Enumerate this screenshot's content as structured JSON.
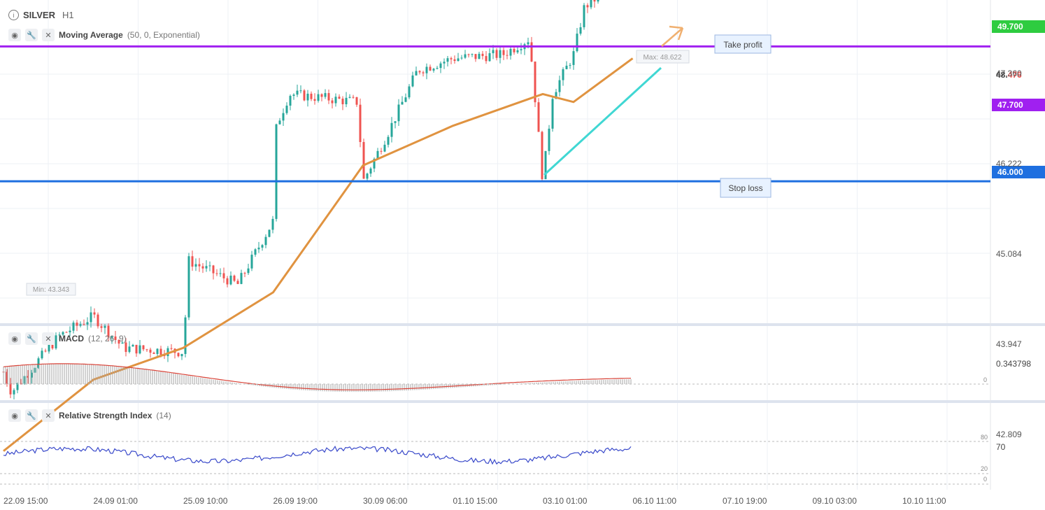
{
  "header": {
    "symbol": "SILVER",
    "timeframe": "H1"
  },
  "indicators": {
    "ma": {
      "name": "Moving Average",
      "params": "(50, 0, Exponential)"
    },
    "macd": {
      "name": "MACD",
      "params": "(12, 26, 9)"
    },
    "rsi": {
      "name": "Relative Strength Index",
      "params": "(14)"
    }
  },
  "price_axis": {
    "ticks": [
      "47.360",
      "46.222",
      "45.084",
      "43.947",
      "42.809"
    ],
    "current_price_prefix": "48.",
    "current_price_suffix": "476",
    "tp_tag": "49.700",
    "level_tag": "47.700",
    "sl_tag": "46.000"
  },
  "macd_axis": {
    "value": "0.343798",
    "zero": "0"
  },
  "rsi_axis": {
    "value": "70",
    "upper": "80",
    "lower": "20",
    "zero": "0"
  },
  "annotations": {
    "take_profit": "Take profit",
    "stop_loss": "Stop loss",
    "max_label": "Max: 48.622",
    "min_label": "Min: 43.343"
  },
  "x_labels": [
    "22.09 15:00",
    "24.09 01:00",
    "25.09 10:00",
    "26.09 19:00",
    "30.09 06:00",
    "01.10 15:00",
    "03.10 01:00",
    "06.10 11:00",
    "07.10 19:00",
    "09.10 03:00",
    "10.10 11:00"
  ],
  "colors": {
    "up_candle": "#26a69a",
    "down_candle": "#ef5350",
    "ma": "#e09340",
    "take_profit_line": "#2ecc40",
    "level_line": "#a020f0",
    "stop_loss_line": "#1e6fe0",
    "trendline": "#40d7d3",
    "macd_signal": "#d9453a",
    "macd_hist": "#a6a6a6",
    "rsi": "#3949ca"
  },
  "chart_data": [
    {
      "type": "candlestick",
      "title": "SILVER H1",
      "ylim": [
        42.3,
        50.0
      ],
      "key_points": [
        {
          "x": "22.09 15:00",
          "close": 43.6
        },
        {
          "x": "22.09 18:00",
          "close": 43.343
        },
        {
          "x": "23.09 12:00",
          "close": 44.05
        },
        {
          "x": "24.09 01:00",
          "close": 44.3
        },
        {
          "x": "24.09 12:00",
          "close": 43.9
        },
        {
          "x": "25.09 10:00",
          "close": 43.85
        },
        {
          "x": "25.09 12:00",
          "close": 45.0
        },
        {
          "x": "26.09 06:00",
          "close": 44.7
        },
        {
          "x": "26.09 19:00",
          "close": 45.5
        },
        {
          "x": "26.09 22:00",
          "close": 46.7
        },
        {
          "x": "27.09 10:00",
          "close": 47.1
        },
        {
          "x": "30.09 01:00",
          "close": 47.0
        },
        {
          "x": "30.09 06:00",
          "close": 46.0
        },
        {
          "x": "30.09 15:00",
          "close": 46.6
        },
        {
          "x": "01.10 02:00",
          "close": 47.4
        },
        {
          "x": "01.10 15:00",
          "close": 47.55
        },
        {
          "x": "02.10 10:00",
          "close": 47.6
        },
        {
          "x": "02.10 20:00",
          "close": 47.8
        },
        {
          "x": "03.10 01:00",
          "close": 46.0
        },
        {
          "x": "03.10 10:00",
          "close": 47.1
        },
        {
          "x": "04.10 05:00",
          "close": 47.6
        },
        {
          "x": "04.10 15:00",
          "close": 48.2
        },
        {
          "x": "06.10 09:00",
          "close": 48.622
        },
        {
          "x": "06.10 11:00",
          "close": 48.476
        }
      ],
      "series": [
        {
          "name": "Moving Average (50, 0, Exponential)",
          "values": [
            {
              "x": "22.09 15:00",
              "y": 42.6
            },
            {
              "x": "24.09 01:00",
              "y": 43.5
            },
            {
              "x": "25.09 10:00",
              "y": 43.9
            },
            {
              "x": "26.09 19:00",
              "y": 44.6
            },
            {
              "x": "30.09 06:00",
              "y": 46.2
            },
            {
              "x": "01.10 15:00",
              "y": 46.7
            },
            {
              "x": "03.10 01:00",
              "y": 47.1
            },
            {
              "x": "04.10 05:00",
              "y": 47.0
            },
            {
              "x": "06.10 11:00",
              "y": 47.55
            }
          ]
        }
      ],
      "levels": [
        {
          "name": "Take profit",
          "value": 49.7
        },
        {
          "name": "",
          "value": 47.7
        },
        {
          "name": "Stop loss",
          "value": 46.0
        }
      ],
      "current_price": 48.476,
      "max": 48.622,
      "min": 43.343
    },
    {
      "type": "bar",
      "title": "MACD (12, 26, 9)",
      "last_value": 0.343798,
      "zero_line": 0
    },
    {
      "type": "line",
      "title": "Relative Strength Index (14)",
      "last_value": 70,
      "levels": [
        80,
        20,
        0
      ]
    }
  ]
}
